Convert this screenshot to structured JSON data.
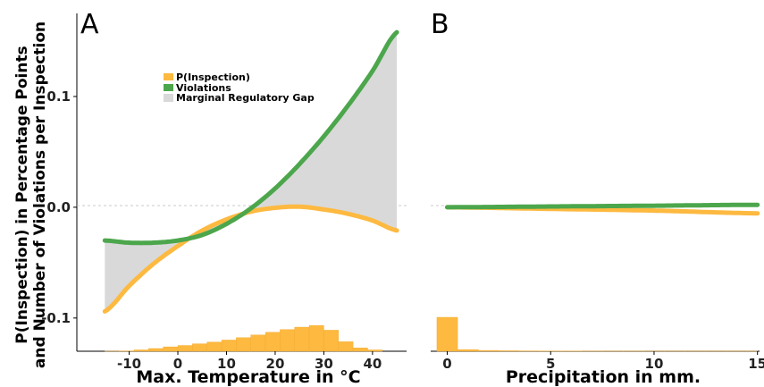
{
  "figure": {
    "ylabel_line1": "P(Inspection) in Percentage Points",
    "ylabel_line2": "and Number of Violations per Inspection"
  },
  "colors": {
    "inspection": "#FDB940",
    "violations": "#4CA64C",
    "gap": "#D9D9D9",
    "histogram": "#FDB940",
    "zero_line": "#BBBBBB"
  },
  "legend": {
    "items": [
      {
        "label": "P(Inspection)",
        "color": "#FDB940"
      },
      {
        "label": "Violations",
        "color": "#4CA64C"
      },
      {
        "label": "Marginal Regulatory Gap",
        "color": "#D9D9D9"
      }
    ],
    "placement": "upper-left inside panel A"
  },
  "chart_data": [
    {
      "panel": "A",
      "type": "line",
      "xlabel": "Max. Temperature in °C",
      "xticks": [
        -10,
        0,
        10,
        20,
        30,
        40
      ],
      "xlim": [
        -18,
        47
      ],
      "ylim": [
        -0.13,
        0.175
      ],
      "yticks": [
        -0.1,
        0.0,
        0.1
      ],
      "ytick_labels": [
        "-0.1",
        "0.0",
        "0.1"
      ],
      "x": [
        -15,
        -10,
        -5,
        0,
        5,
        10,
        15,
        20,
        25,
        30,
        35,
        40,
        45
      ],
      "series": [
        {
          "name": "P(Inspection)",
          "values": [
            -0.094,
            -0.071,
            -0.051,
            -0.035,
            -0.021,
            -0.011,
            -0.004,
            -0.0005,
            0.0005,
            -0.002,
            -0.006,
            -0.012,
            -0.021
          ]
        },
        {
          "name": "Violations",
          "values": [
            -0.03,
            -0.032,
            -0.032,
            -0.03,
            -0.025,
            -0.015,
            -0.001,
            0.017,
            0.039,
            0.064,
            0.092,
            0.123,
            0.158
          ]
        }
      ],
      "shaded_region": "Marginal Regulatory Gap",
      "histogram": {
        "bin_edges": [
          -15,
          -12,
          -9,
          -6,
          -3,
          0,
          3,
          6,
          9,
          12,
          15,
          18,
          21,
          24,
          27,
          30,
          33,
          36,
          39,
          42
        ],
        "heights": [
          0.003,
          0.01,
          0.04,
          0.08,
          0.13,
          0.17,
          0.22,
          0.27,
          0.33,
          0.4,
          0.48,
          0.56,
          0.64,
          0.71,
          0.76,
          0.62,
          0.28,
          0.1,
          0.04
        ]
      }
    },
    {
      "panel": "B",
      "type": "line",
      "xlabel": "Precipitation in mm.",
      "xticks": [
        0,
        5,
        10,
        15
      ],
      "xlim": [
        -0.8,
        15.1
      ],
      "ylim": [
        -0.13,
        0.175
      ],
      "x": [
        0,
        5,
        10,
        15
      ],
      "series": [
        {
          "name": "P(Inspection)",
          "values": [
            0.0,
            -0.0015,
            -0.003,
            -0.0055
          ]
        },
        {
          "name": "Violations",
          "values": [
            0.0,
            0.0007,
            0.0014,
            0.0022
          ]
        }
      ],
      "histogram": {
        "bin_edges": [
          -0.5,
          0.5,
          1.5,
          2.5,
          3.5,
          4.5,
          5.5,
          6.5,
          7.5,
          8.5,
          9.5,
          10.5,
          11.5,
          12.5,
          13.5,
          14.5,
          15.0
        ],
        "heights": [
          1.0,
          0.05,
          0.025,
          0.015,
          0.01,
          0.008,
          0.006,
          0.005,
          0.004,
          0.004,
          0.003,
          0.003,
          0.003,
          0.003,
          0.003,
          0.003
        ]
      }
    }
  ],
  "panels": {
    "A": {
      "letter": "A",
      "xlabel": "Max. Temperature in °C",
      "tick_labels": [
        "-10",
        "0",
        "10",
        "20",
        "30",
        "40"
      ],
      "ytick_labels": [
        "-0.1",
        "0.0",
        "0.1"
      ]
    },
    "B": {
      "letter": "B",
      "xlabel": "Precipitation in mm.",
      "tick_labels": [
        "0",
        "5",
        "10",
        "15"
      ]
    }
  }
}
